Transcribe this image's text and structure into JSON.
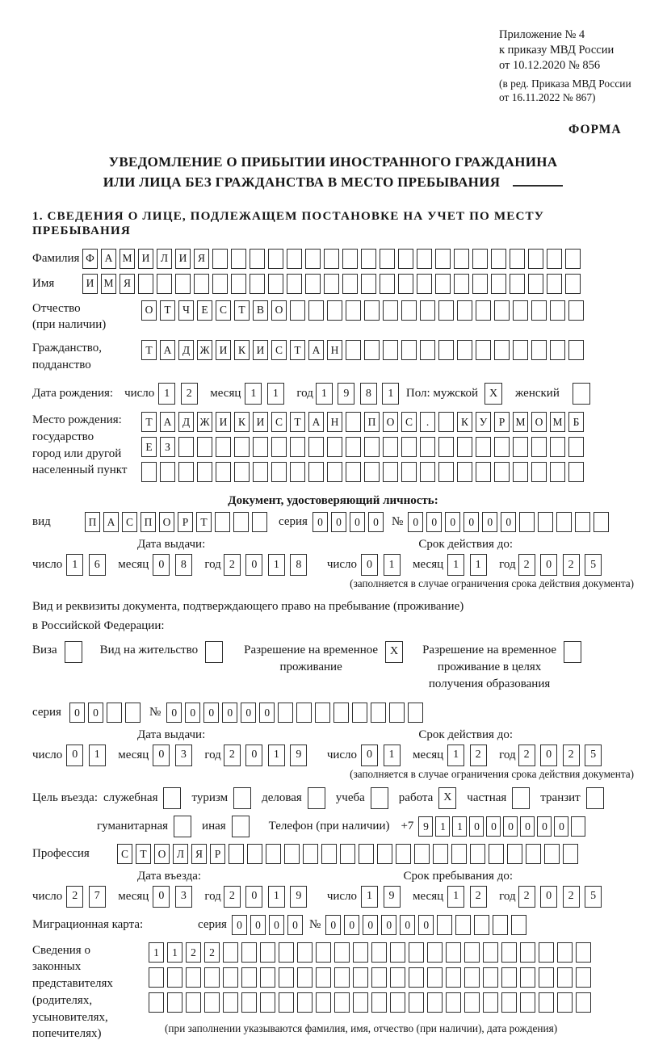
{
  "colors": {
    "text": "#161616",
    "box_border": "#2d2d2d"
  },
  "header": {
    "ref_lines": [
      "Приложение № 4",
      "к приказу МВД России",
      "от 10.12.2020 № 856"
    ],
    "ed_lines": [
      "(в ред. Приказа МВД России",
      "от 16.11.2022 № 867)"
    ],
    "forma": "ФОРМА"
  },
  "title": {
    "line1": "УВЕДОМЛЕНИЕ О ПРИБЫТИИ ИНОСТРАННОГО ГРАЖДАНИНА",
    "line2": "ИЛИ ЛИЦА БЕЗ ГРАЖДАНСТВА В МЕСТО ПРЕБЫВАНИЯ"
  },
  "section1_heading": "1. СВЕДЕНИЯ О ЛИЦЕ, ПОДЛЕЖАЩЕМ ПОСТАНОВКЕ НА УЧЕТ ПО МЕСТУ ПРЕБЫВАНИЯ",
  "date_words": {
    "day": "число",
    "month": "месяц",
    "year": "год"
  },
  "surname": {
    "label": "Фамилия",
    "boxes": {
      "v": "ФАМИЛИЯ",
      "n": 27
    }
  },
  "firstname": {
    "label": "Имя",
    "boxes": {
      "v": "ИМЯ",
      "n": 27
    }
  },
  "patronymic": {
    "label": "Отчество\n(при наличии)",
    "boxes": {
      "v": "ОТЧЕСТВО",
      "n": 24
    }
  },
  "citizenship": {
    "label": "Гражданство,\nподданство",
    "boxes": {
      "v": "ТАДЖИКИСТАН",
      "n": 24
    }
  },
  "birth": {
    "label": "Дата рождения:",
    "day": {
      "v": "12",
      "n": 2
    },
    "month": {
      "v": "11",
      "n": 2
    },
    "year": {
      "v": "1981",
      "n": 4
    },
    "sex_label": "Пол: мужской",
    "male_box": {
      "v": "X",
      "n": 1
    },
    "female_label": "женский",
    "female_box": {
      "v": "",
      "n": 1
    }
  },
  "birth_place": {
    "label": "Место рождения:\nгосударство\nгород или другой\nнаселенный пункт",
    "row1": {
      "v": "ТАДЖИКИСТАН ПОС. КУРМОМБ",
      "n": 24
    },
    "row2": {
      "v": "ЕЗ",
      "n": 24
    },
    "row3": {
      "v": "",
      "n": 24
    }
  },
  "identity_doc": {
    "heading": "Документ, удостоверяющий личность:",
    "kind_label": "вид",
    "kind": {
      "v": "ПАСПОРТ",
      "n": 10
    },
    "series_label": "серия",
    "series": {
      "v": "0000",
      "n": 4
    },
    "number_label": "№",
    "number": {
      "v": "000000",
      "n": 11
    },
    "issue_heading": "Дата выдачи:",
    "issue": {
      "day": {
        "v": "16",
        "n": 2
      },
      "month": {
        "v": "08",
        "n": 2
      },
      "year": {
        "v": "2018",
        "n": 4
      }
    },
    "valid_heading": "Срок действия до:",
    "valid": {
      "day": {
        "v": "01",
        "n": 2
      },
      "month": {
        "v": "11",
        "n": 2
      },
      "year": {
        "v": "2025",
        "n": 4
      }
    },
    "note": "(заполняется в случае ограничения срока действия документа)"
  },
  "residence_doc": {
    "line1": "Вид и реквизиты документа, подтверждающего право на пребывание (проживание)",
    "line2": "в Российской Федерации:",
    "options": [
      {
        "label": "Виза",
        "box": {
          "v": "",
          "n": 1
        }
      },
      {
        "label": "Вид на жительство",
        "box": {
          "v": "",
          "n": 1
        }
      },
      {
        "label": "Разрешение на временное\nпроживание",
        "box": {
          "v": "X",
          "n": 1
        }
      },
      {
        "label": "Разрешение на временное\nпроживание в целях\nполучения образования",
        "box": {
          "v": "",
          "n": 1
        }
      }
    ],
    "series_label": "серия",
    "series": {
      "v": "00",
      "n": 4
    },
    "number_label": "№",
    "number": {
      "v": "000000",
      "n": 14
    },
    "issue_heading": "Дата выдачи:",
    "issue": {
      "day": {
        "v": "01",
        "n": 2
      },
      "month": {
        "v": "03",
        "n": 2
      },
      "year": {
        "v": "2019",
        "n": 4
      }
    },
    "valid_heading": "Срок действия до:",
    "valid": {
      "day": {
        "v": "01",
        "n": 2
      },
      "month": {
        "v": "12",
        "n": 2
      },
      "year": {
        "v": "2025",
        "n": 4
      }
    },
    "note": "(заполняется в случае ограничения срока действия документа)"
  },
  "purpose": {
    "label": "Цель въезда:",
    "row1": [
      {
        "label": "служебная",
        "box": {
          "v": "",
          "n": 1
        }
      },
      {
        "label": "туризм",
        "box": {
          "v": "",
          "n": 1
        }
      },
      {
        "label": "деловая",
        "box": {
          "v": "",
          "n": 1
        }
      },
      {
        "label": "учеба",
        "box": {
          "v": "",
          "n": 1
        }
      },
      {
        "label": "работа",
        "box": {
          "v": "X",
          "n": 1
        }
      },
      {
        "label": "частная",
        "box": {
          "v": "",
          "n": 1
        }
      },
      {
        "label": "транзит",
        "box": {
          "v": "",
          "n": 1
        }
      }
    ],
    "row2": [
      {
        "label": "гуманитарная",
        "box": {
          "v": "",
          "n": 1
        }
      },
      {
        "label": "иная",
        "box": {
          "v": "",
          "n": 1
        }
      }
    ],
    "phone_label": "Телефон (при наличии)",
    "phone_prefix": "+7",
    "phone": {
      "v": "911000000",
      "n": 10
    }
  },
  "profession": {
    "label": "Профессия",
    "boxes": {
      "v": "СТОЛЯР",
      "n": 25
    }
  },
  "entry": {
    "issue_heading": "Дата въезда:",
    "issue": {
      "day": {
        "v": "27",
        "n": 2
      },
      "month": {
        "v": "03",
        "n": 2
      },
      "year": {
        "v": "2019",
        "n": 4
      }
    },
    "valid_heading": "Срок пребывания до:",
    "valid": {
      "day": {
        "v": "19",
        "n": 2
      },
      "month": {
        "v": "12",
        "n": 2
      },
      "year": {
        "v": "2025",
        "n": 4
      }
    }
  },
  "migration_card": {
    "label": "Миграционная карта:",
    "series_label": "серия",
    "series": {
      "v": "0000",
      "n": 4
    },
    "number_label": "№",
    "number": {
      "v": "000000",
      "n": 11
    }
  },
  "representatives": {
    "label": "Сведения о\nзаконных\nпредставителях\n(родителях,\nусыновителях,\nпопечителях)",
    "row1": {
      "v": "1122",
      "n": 24
    },
    "row2": {
      "v": "",
      "n": 24
    },
    "row3": {
      "v": "",
      "n": 24
    },
    "footnote": "(при заполнении указываются фамилия, имя, отчество (при наличии), дата рождения)"
  }
}
